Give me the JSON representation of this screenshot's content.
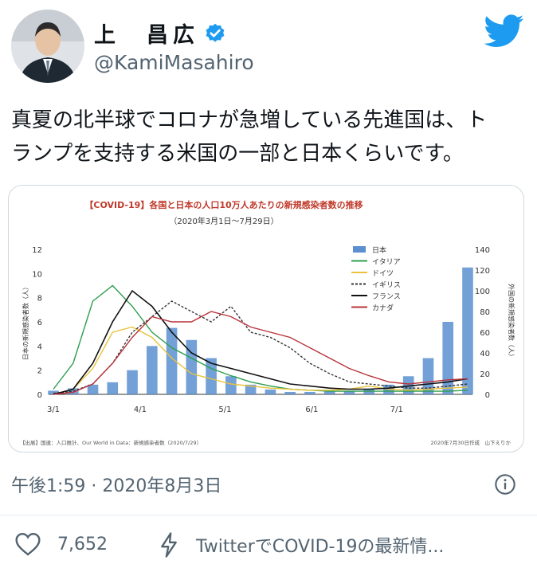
{
  "user": {
    "display_name": "上　昌広",
    "handle": "@KamiMasahiro"
  },
  "tweet": {
    "text_line1": "真夏の北半球でコロナが急増している先進国は、ト",
    "text_line2": "ランプを支持する米国の一部と日本くらいです。",
    "timestamp": "午後1:59 · 2020年8月3日"
  },
  "actions": {
    "like_count": "7,652",
    "promo_text": "TwitterでCOVID-19の最新情..."
  },
  "icons": {
    "verified": "verified-badge-icon",
    "logo": "twitter-bird-icon",
    "info": "info-icon",
    "like": "heart-icon",
    "promo": "lightning-icon"
  },
  "colors": {
    "twitter_blue": "#1d9bf0",
    "japan": "#5b8fd0",
    "italy": "#2e9d4f",
    "germany": "#e8c33a",
    "uk": "#333333",
    "france": "#111111",
    "canada": "#b8333a",
    "title_red": "#c0392b"
  },
  "chart_data": {
    "type": "bar",
    "title": "【COVID-19】各国と日本の人口10万人あたりの新規感染者数の推移",
    "subtitle": "（2020年3月1日〜7月29日）",
    "ylabel_left": "日本の新規感染者数（人）",
    "ylabel_right": "外国の新規感染者数（人）",
    "ylim_left": [
      0,
      12
    ],
    "ylim_right": [
      0,
      140
    ],
    "yticks_left": [
      "0",
      "2",
      "4",
      "6",
      "8",
      "10",
      "12"
    ],
    "yticks_right": [
      "0",
      "20",
      "40",
      "60",
      "80",
      "100",
      "120",
      "140"
    ],
    "xticks": [
      "3/1",
      "4/1",
      "5/1",
      "6/1",
      "7/1"
    ],
    "x": [
      "3/1",
      "3/8",
      "3/15",
      "3/22",
      "3/29",
      "4/5",
      "4/12",
      "4/19",
      "4/26",
      "5/3",
      "5/10",
      "5/17",
      "5/24",
      "5/31",
      "6/7",
      "6/14",
      "6/21",
      "6/28",
      "7/5",
      "7/12",
      "7/19",
      "7/26"
    ],
    "series": [
      {
        "name": "日本",
        "axis": "left",
        "type": "bar",
        "values": [
          0.3,
          0.5,
          0.8,
          1.0,
          2.0,
          4.0,
          5.5,
          4.5,
          3.0,
          1.5,
          0.8,
          0.4,
          0.2,
          0.2,
          0.3,
          0.3,
          0.4,
          0.8,
          1.5,
          3.0,
          6.0,
          10.5
        ]
      },
      {
        "name": "イタリア",
        "axis": "right",
        "type": "line",
        "values": [
          5,
          30,
          90,
          105,
          85,
          60,
          45,
          35,
          25,
          18,
          12,
          8,
          5,
          4,
          3,
          3,
          3,
          3,
          3,
          3,
          3,
          4
        ]
      },
      {
        "name": "ドイツ",
        "axis": "right",
        "type": "line",
        "values": [
          0,
          5,
          25,
          60,
          65,
          55,
          35,
          20,
          15,
          10,
          8,
          6,
          5,
          4,
          4,
          5,
          8,
          5,
          4,
          5,
          6,
          7
        ]
      },
      {
        "name": "イギリス",
        "axis": "right",
        "type": "line",
        "values": [
          1,
          3,
          10,
          30,
          60,
          75,
          90,
          80,
          70,
          85,
          60,
          55,
          45,
          30,
          20,
          12,
          10,
          8,
          6,
          6,
          8,
          10
        ]
      },
      {
        "name": "フランス",
        "axis": "right",
        "type": "line",
        "values": [
          0,
          5,
          30,
          70,
          100,
          85,
          60,
          40,
          30,
          25,
          20,
          15,
          10,
          8,
          6,
          5,
          5,
          6,
          8,
          10,
          12,
          15
        ]
      },
      {
        "name": "カナダ",
        "axis": "right",
        "type": "line",
        "values": [
          0,
          2,
          10,
          30,
          55,
          75,
          70,
          70,
          80,
          75,
          65,
          60,
          55,
          45,
          35,
          25,
          18,
          12,
          10,
          12,
          14,
          15
        ]
      }
    ],
    "legend_position": "top-right",
    "source_note": "【出展】国連：人口推計、Our World in Data：新規感染者数（2020/7/29）",
    "credit_note": "2020年7月30日作成　山下えりか"
  }
}
